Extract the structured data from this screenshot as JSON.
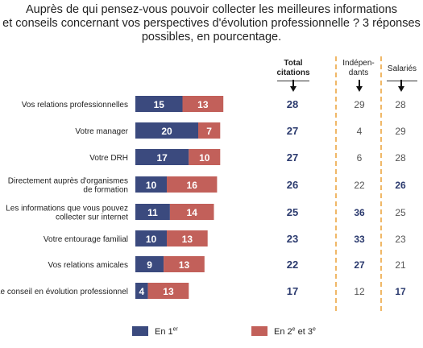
{
  "title": {
    "line1": "Auprès de qui pensez-vous pouvoir collecter les meilleures informations",
    "line2": "et conseils concernant vos perspectives d'évolution professionnelle ? 3 réponses",
    "line3": "possibles, en pourcentage."
  },
  "columns": {
    "total": [
      "Total",
      "citations"
    ],
    "independants": [
      "Indépen-",
      "dants"
    ],
    "salaries": [
      "Salariés"
    ]
  },
  "legend": {
    "first": {
      "text": "En 1",
      "sup": "er"
    },
    "second": {
      "text": "En 2",
      "sup1": "e",
      "mid": " et 3",
      "sup2": "e"
    }
  },
  "colors": {
    "first": "#3b4a7e",
    "second": "#c2605a",
    "dashed": "#f0b868",
    "total_text": "#2b3a6e"
  },
  "chart_data": {
    "type": "bar",
    "orientation": "horizontal",
    "stacked": true,
    "categories": [
      [
        "Vos relations professionnelles"
      ],
      [
        "Votre manager"
      ],
      [
        "Votre DRH"
      ],
      [
        "Directement auprès d'organismes",
        "de formation"
      ],
      [
        "Les informations que vous pouvez",
        "collecter sur internet"
      ],
      [
        "Votre entourage familial"
      ],
      [
        "Vos relations amicales"
      ],
      [
        "Le conseil en évolution professionnel"
      ]
    ],
    "series": [
      {
        "name": "En 1er",
        "values": [
          15,
          20,
          17,
          10,
          11,
          10,
          9,
          4
        ]
      },
      {
        "name": "En 2e et 3e",
        "values": [
          13,
          7,
          10,
          16,
          14,
          13,
          13,
          13
        ]
      }
    ],
    "table": {
      "total_citations": [
        28,
        27,
        27,
        26,
        25,
        23,
        22,
        17
      ],
      "independants": [
        29,
        4,
        6,
        22,
        36,
        33,
        27,
        12
      ],
      "salaries": [
        28,
        29,
        28,
        26,
        25,
        23,
        21,
        17
      ],
      "independants_bold": [
        false,
        false,
        false,
        false,
        true,
        true,
        true,
        false
      ],
      "salaries_bold": [
        false,
        false,
        false,
        true,
        false,
        false,
        false,
        true
      ]
    }
  }
}
